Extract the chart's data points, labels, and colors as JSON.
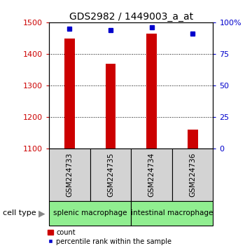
{
  "title": "GDS2982 / 1449003_a_at",
  "samples": [
    "GSM224733",
    "GSM224735",
    "GSM224734",
    "GSM224736"
  ],
  "counts": [
    1448,
    1370,
    1465,
    1160
  ],
  "percentiles": [
    95,
    94,
    96,
    91
  ],
  "ylim_left": [
    1100,
    1500
  ],
  "ylim_right": [
    0,
    100
  ],
  "yticks_left": [
    1100,
    1200,
    1300,
    1400,
    1500
  ],
  "yticks_right": [
    0,
    25,
    50,
    75,
    100
  ],
  "ytick_labels_right": [
    "0",
    "25",
    "50",
    "75",
    "100%"
  ],
  "grid_values": [
    1200,
    1300,
    1400
  ],
  "bar_color": "#cc0000",
  "dot_color": "#0000cc",
  "bar_width": 0.25,
  "group_labels": [
    "splenic macrophage",
    "intestinal macrophage"
  ],
  "cell_type_label": "cell type",
  "legend_bar_label": "count",
  "legend_dot_label": "percentile rank within the sample",
  "left_tick_color": "#cc0000",
  "right_tick_color": "#0000cc",
  "tick_label_bg": "#d3d3d3",
  "green_bg": "#90ee90"
}
